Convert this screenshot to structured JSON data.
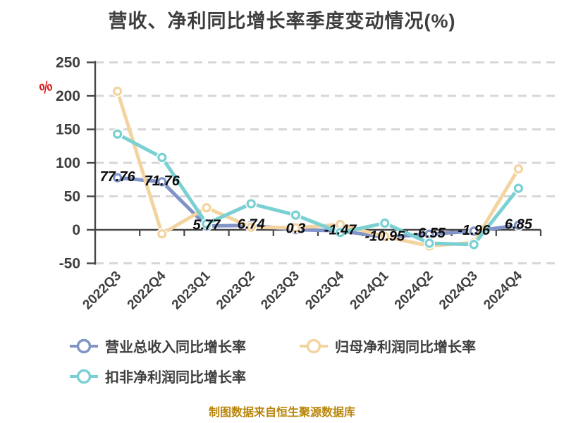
{
  "title": "营收、净利同比增长率季度变动情况(%)",
  "y_axis_unit": "%",
  "footer": "制图数据来自恒生聚源数据库",
  "colors": {
    "background": "#ffffff",
    "title_text": "#3e3e3e",
    "axis": "#474747",
    "axis_text": "#3e3e3e",
    "grid": "#d7d7d7",
    "data_label": "#0d0d0d",
    "footer_text": "#b8860b",
    "unit_text": "#e01212",
    "series_revenue": "#8094c7",
    "series_net_profit": "#f3d4a0",
    "series_non_gaap": "#7ad0d3"
  },
  "chart_data": {
    "type": "line",
    "title": "营收、净利同比增长率季度变动情况(%)",
    "xlabel": "",
    "ylabel": "%",
    "ylim": [
      -50,
      250
    ],
    "y_ticks": [
      250,
      200,
      150,
      100,
      50,
      0,
      -50
    ],
    "grid": "horizontal dashed",
    "legend_position": "bottom",
    "categories": [
      "2022Q3",
      "2022Q4",
      "2023Q1",
      "2023Q2",
      "2023Q3",
      "2023Q4",
      "2024Q1",
      "2024Q2",
      "2024Q3",
      "2024Q4"
    ],
    "series": [
      {
        "name": "营业总收入同比增长率",
        "color": "#8094c7",
        "values": [
          77.76,
          71.76,
          5.77,
          6.74,
          0.3,
          -1.47,
          -10.95,
          -6.55,
          -1.96,
          6.85
        ],
        "data_labels": [
          "77.76",
          "71.76",
          "5.77",
          "6.74",
          "0.3",
          "-1.47",
          "-10.95",
          "-6.55",
          "-1.96",
          "6.85"
        ]
      },
      {
        "name": "归母净利润同比增长率",
        "color": "#f3d4a0",
        "values": [
          207,
          -6,
          33,
          4,
          3,
          8,
          -10,
          -24,
          -19,
          91
        ],
        "data_labels": null
      },
      {
        "name": "扣非净利润同比增长率",
        "color": "#7ad0d3",
        "values": [
          143,
          108,
          9,
          39,
          22,
          -4,
          10,
          -20,
          -22,
          62
        ],
        "data_labels": null
      }
    ]
  }
}
